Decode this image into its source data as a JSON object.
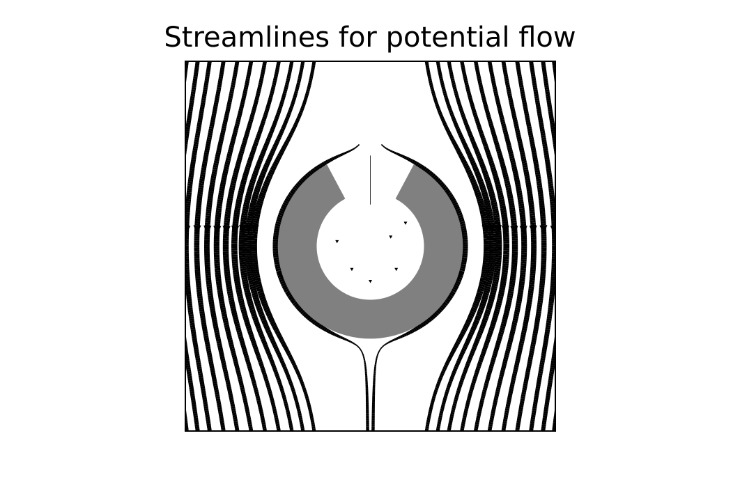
{
  "chart_data": {
    "type": "streamplot",
    "title": "Streamlines for potential flow",
    "xlabel": "",
    "ylabel": "",
    "xlim": [
      -2,
      2
    ],
    "ylim": [
      -2,
      2
    ],
    "axes_visible": false,
    "grid": false,
    "flow": {
      "kind": "uniform flow past a circular cylinder",
      "direction": "vertical",
      "free_stream_speed": 1.0,
      "cylinder_radius": 1.0
    },
    "masked_region": {
      "shape": "annulus",
      "inner_radius": 0.58,
      "outer_radius": 1.0,
      "gap_direction": "top",
      "gap_half_angle_deg": 28
    },
    "linewidth_encodes": "speed",
    "colors": {
      "streamlines": "#000000",
      "mask": "#808080",
      "frame": "#000000",
      "background": "#ffffff"
    },
    "streamline_offsets_left": [
      -1.98,
      -1.86,
      -1.73,
      -1.58,
      -1.43,
      -1.28,
      -1.13,
      -0.98,
      -0.84,
      -0.72,
      -0.6
    ],
    "streamline_offsets_right": [
      0.6,
      0.72,
      0.84,
      0.98,
      1.13,
      1.28,
      1.43,
      1.58,
      1.73,
      1.86,
      1.98
    ],
    "inner_flow_offsets": [
      -0.38,
      -0.26,
      0.26,
      0.38
    ]
  }
}
